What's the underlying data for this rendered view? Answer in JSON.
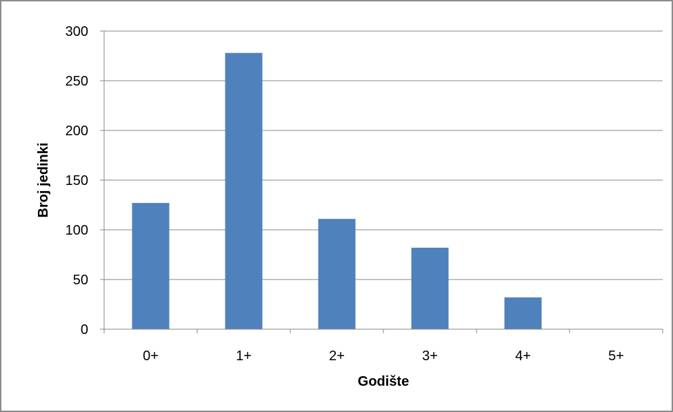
{
  "chart_data": {
    "type": "bar",
    "title": "",
    "xlabel": "Godište",
    "ylabel": "Broj jedinki",
    "categories": [
      "0+",
      "1+",
      "2+",
      "3+",
      "4+",
      "5+"
    ],
    "values": [
      127,
      278,
      111,
      82,
      32,
      0
    ],
    "ylim": [
      0,
      300
    ],
    "yticks": [
      "0",
      "50",
      "100",
      "150",
      "200",
      "250",
      "300"
    ],
    "grid": true,
    "legend": "none",
    "bar_color": "#4f81bd"
  }
}
